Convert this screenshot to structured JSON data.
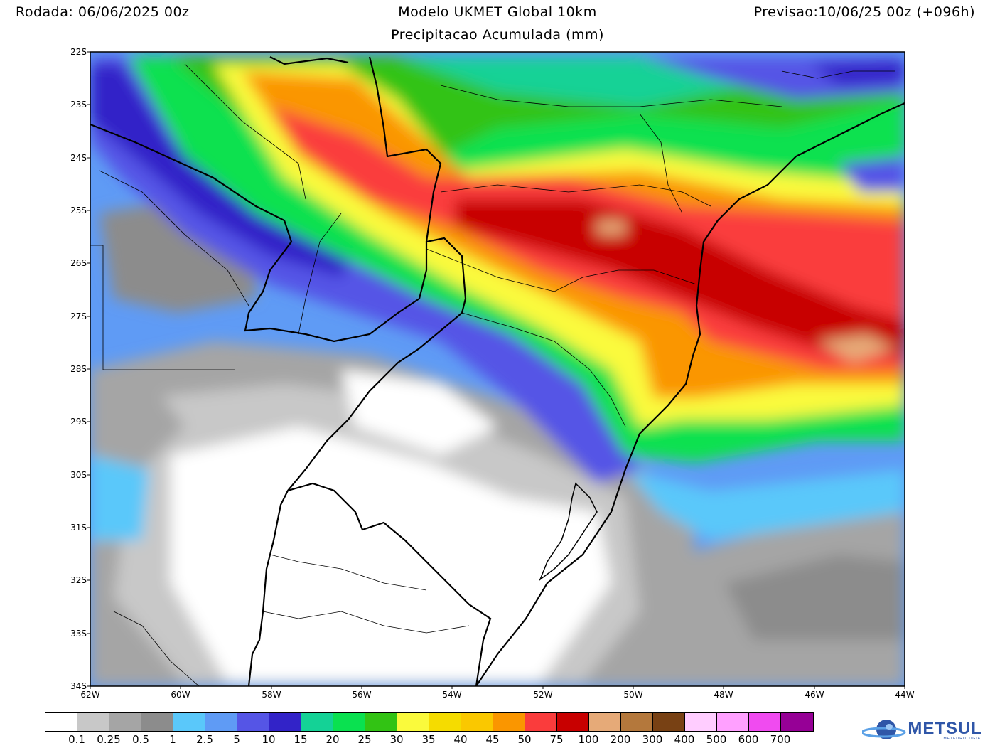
{
  "header": {
    "left": "Rodada: 06/06/2025 00z",
    "center": "Modelo UKMET Global 10km",
    "right": "Previsao:10/06/25 00z (+096h)",
    "subtitle": "Precipitacao Acumulada (mm)"
  },
  "map": {
    "lat_labels": [
      "22S",
      "23S",
      "24S",
      "25S",
      "26S",
      "27S",
      "28S",
      "29S",
      "30S",
      "31S",
      "32S",
      "33S",
      "34S"
    ],
    "lon_labels": [
      "62W",
      "60W",
      "58W",
      "56W",
      "54W",
      "52W",
      "50W",
      "48W",
      "46W",
      "44W"
    ]
  },
  "legend": {
    "labels": [
      "0.1",
      "0.25",
      "0.5",
      "1",
      "2.5",
      "5",
      "10",
      "15",
      "20",
      "25",
      "30",
      "35",
      "40",
      "45",
      "50",
      "75",
      "100",
      "200",
      "300",
      "400",
      "500",
      "600",
      "700"
    ],
    "colors": [
      "#ffffff",
      "#c8c8c8",
      "#a5a5a5",
      "#8c8c8c",
      "#5ac8fa",
      "#5f9bf5",
      "#5555e6",
      "#3223c8",
      "#14d296",
      "#0ae150",
      "#32c314",
      "#fafa3c",
      "#f5dc00",
      "#fac800",
      "#fa9600",
      "#fa3c3c",
      "#c80000",
      "#e6aa78",
      "#b4783c",
      "#784114",
      "#ffcdff",
      "#ffa0ff",
      "#f04bf0",
      "#960096"
    ]
  },
  "logo": {
    "name": "METSUL",
    "sub": "METEOROLOGIA"
  }
}
